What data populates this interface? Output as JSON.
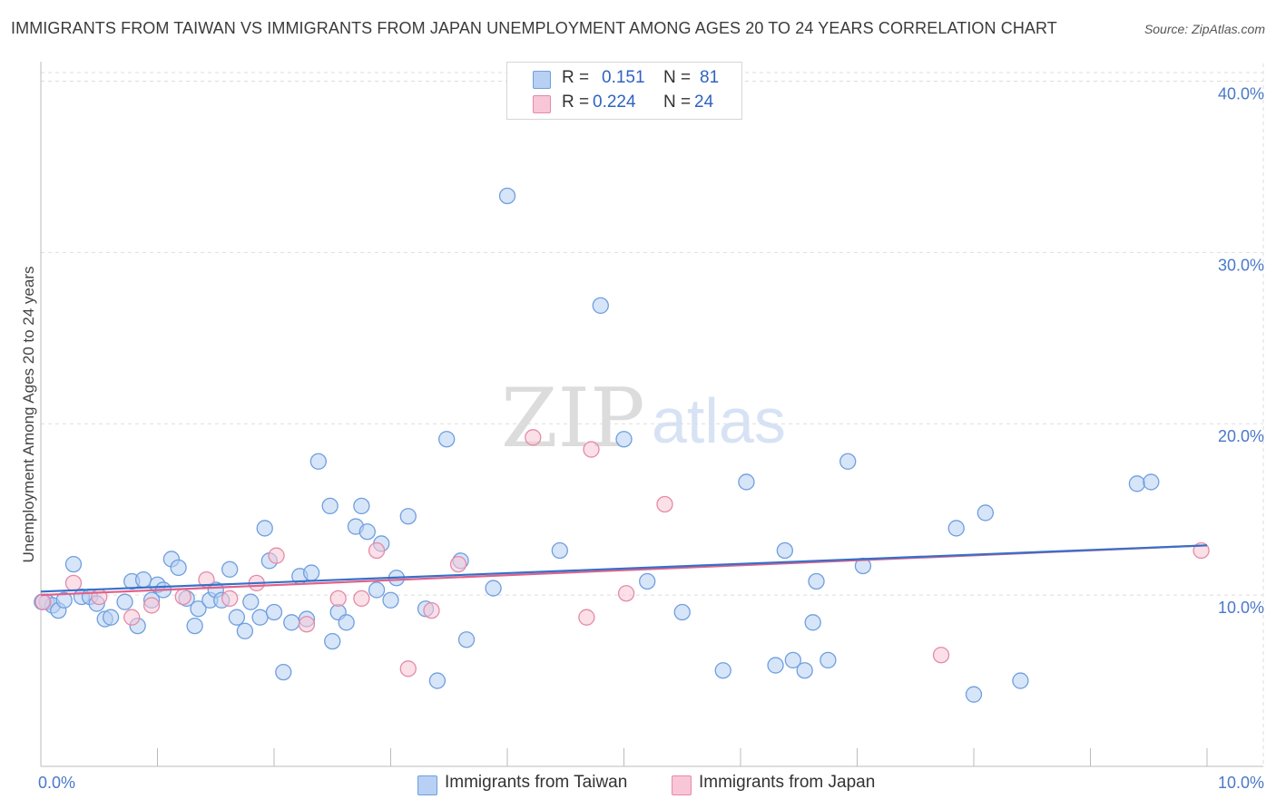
{
  "header": {
    "title": "IMMIGRANTS FROM TAIWAN VS IMMIGRANTS FROM JAPAN UNEMPLOYMENT AMONG AGES 20 TO 24 YEARS CORRELATION CHART",
    "source": "Source: ZipAtlas.com"
  },
  "watermark": {
    "zip": "ZIP",
    "atlas": "atlas"
  },
  "legend": {
    "taiwan": {
      "r_label": "R =",
      "r_value": "0.151",
      "n_label": "N =",
      "n_value": "81"
    },
    "japan": {
      "r_label": "R =",
      "r_value": "0.224",
      "n_label": "N =",
      "n_value": "24"
    }
  },
  "colors": {
    "taiwan_fill": "#b7d0f3",
    "taiwan_stroke": "#6f9fdf",
    "taiwan_line": "#3670c8",
    "japan_fill": "#f8c6d6",
    "japan_stroke": "#e58aa9",
    "japan_line": "#e0628b",
    "grid": "#dddddd"
  },
  "chart_data": {
    "type": "scatter",
    "title": "IMMIGRANTS FROM TAIWAN VS IMMIGRANTS FROM JAPAN UNEMPLOYMENT AMONG AGES 20 TO 24 YEARS CORRELATION CHART",
    "xlabel": "",
    "ylabel": "Unemployment Among Ages 20 to 24 years",
    "xlim": [
      0,
      10
    ],
    "ylim": [
      0,
      40.5
    ],
    "x_tick_labels": [
      "0.0%",
      "10.0%"
    ],
    "y_ticks": [
      10,
      20,
      30,
      40
    ],
    "y_tick_labels": [
      "10.0%",
      "20.0%",
      "30.0%",
      "40.0%"
    ],
    "grid": true,
    "bottom_legend": [
      "Immigrants from Taiwan",
      "Immigrants from Japan"
    ],
    "series": [
      {
        "name": "Immigrants from Taiwan",
        "key": "taiwan",
        "trend": {
          "x": [
            0,
            10
          ],
          "y": [
            10.2,
            12.9
          ]
        },
        "points": [
          [
            0.05,
            9.6
          ],
          [
            0.1,
            9.4
          ],
          [
            0.15,
            9.1
          ],
          [
            0.2,
            9.7
          ],
          [
            0.28,
            11.8
          ],
          [
            0.35,
            9.9
          ],
          [
            0.42,
            9.9
          ],
          [
            0.48,
            9.5
          ],
          [
            0.55,
            8.6
          ],
          [
            0.6,
            8.7
          ],
          [
            0.72,
            9.6
          ],
          [
            0.78,
            10.8
          ],
          [
            0.83,
            8.2
          ],
          [
            0.88,
            10.9
          ],
          [
            0.95,
            9.7
          ],
          [
            1.0,
            10.6
          ],
          [
            1.05,
            10.3
          ],
          [
            1.12,
            12.1
          ],
          [
            1.18,
            11.6
          ],
          [
            1.25,
            9.8
          ],
          [
            1.32,
            8.2
          ],
          [
            1.35,
            9.2
          ],
          [
            1.45,
            9.7
          ],
          [
            1.5,
            10.3
          ],
          [
            1.55,
            9.7
          ],
          [
            1.62,
            11.5
          ],
          [
            1.68,
            8.7
          ],
          [
            1.75,
            7.9
          ],
          [
            1.8,
            9.6
          ],
          [
            1.88,
            8.7
          ],
          [
            1.92,
            13.9
          ],
          [
            1.96,
            12.0
          ],
          [
            2.0,
            9.0
          ],
          [
            2.08,
            5.5
          ],
          [
            2.15,
            8.4
          ],
          [
            2.22,
            11.1
          ],
          [
            2.28,
            8.6
          ],
          [
            2.32,
            11.3
          ],
          [
            2.38,
            17.8
          ],
          [
            2.48,
            15.2
          ],
          [
            2.5,
            7.3
          ],
          [
            2.55,
            9.0
          ],
          [
            2.62,
            8.4
          ],
          [
            2.7,
            14.0
          ],
          [
            2.75,
            15.2
          ],
          [
            2.8,
            13.7
          ],
          [
            2.88,
            10.3
          ],
          [
            2.92,
            13.0
          ],
          [
            3.0,
            9.7
          ],
          [
            3.05,
            11.0
          ],
          [
            3.15,
            14.6
          ],
          [
            3.3,
            9.2
          ],
          [
            3.4,
            5.0
          ],
          [
            3.48,
            19.1
          ],
          [
            3.6,
            12.0
          ],
          [
            3.65,
            7.4
          ],
          [
            3.88,
            10.4
          ],
          [
            4.0,
            33.3
          ],
          [
            4.45,
            12.6
          ],
          [
            4.8,
            26.9
          ],
          [
            5.0,
            19.1
          ],
          [
            5.2,
            10.8
          ],
          [
            5.5,
            9.0
          ],
          [
            5.85,
            5.6
          ],
          [
            6.05,
            16.6
          ],
          [
            6.3,
            5.9
          ],
          [
            6.38,
            12.6
          ],
          [
            6.45,
            6.2
          ],
          [
            6.55,
            5.6
          ],
          [
            6.62,
            8.4
          ],
          [
            6.65,
            10.8
          ],
          [
            6.75,
            6.2
          ],
          [
            6.92,
            17.8
          ],
          [
            7.05,
            11.7
          ],
          [
            7.85,
            13.9
          ],
          [
            8.0,
            4.2
          ],
          [
            8.1,
            14.8
          ],
          [
            8.4,
            5.0
          ],
          [
            9.4,
            16.5
          ],
          [
            9.52,
            16.6
          ],
          [
            0.01,
            9.6
          ]
        ]
      },
      {
        "name": "Immigrants from Japan",
        "key": "japan",
        "trend": {
          "x": [
            0,
            10
          ],
          "y": [
            10.0,
            12.9
          ]
        },
        "points": [
          [
            0.02,
            9.6
          ],
          [
            0.28,
            10.7
          ],
          [
            0.5,
            9.9
          ],
          [
            0.78,
            8.7
          ],
          [
            0.95,
            9.4
          ],
          [
            1.22,
            9.9
          ],
          [
            1.42,
            10.9
          ],
          [
            1.62,
            9.8
          ],
          [
            1.85,
            10.7
          ],
          [
            2.02,
            12.3
          ],
          [
            2.28,
            8.3
          ],
          [
            2.55,
            9.8
          ],
          [
            2.75,
            9.8
          ],
          [
            2.88,
            12.6
          ],
          [
            3.15,
            5.7
          ],
          [
            3.35,
            9.1
          ],
          [
            3.58,
            11.8
          ],
          [
            4.22,
            19.2
          ],
          [
            4.68,
            8.7
          ],
          [
            4.72,
            18.5
          ],
          [
            5.02,
            10.1
          ],
          [
            5.35,
            15.3
          ],
          [
            7.72,
            6.5
          ],
          [
            9.95,
            12.6
          ]
        ]
      }
    ]
  }
}
